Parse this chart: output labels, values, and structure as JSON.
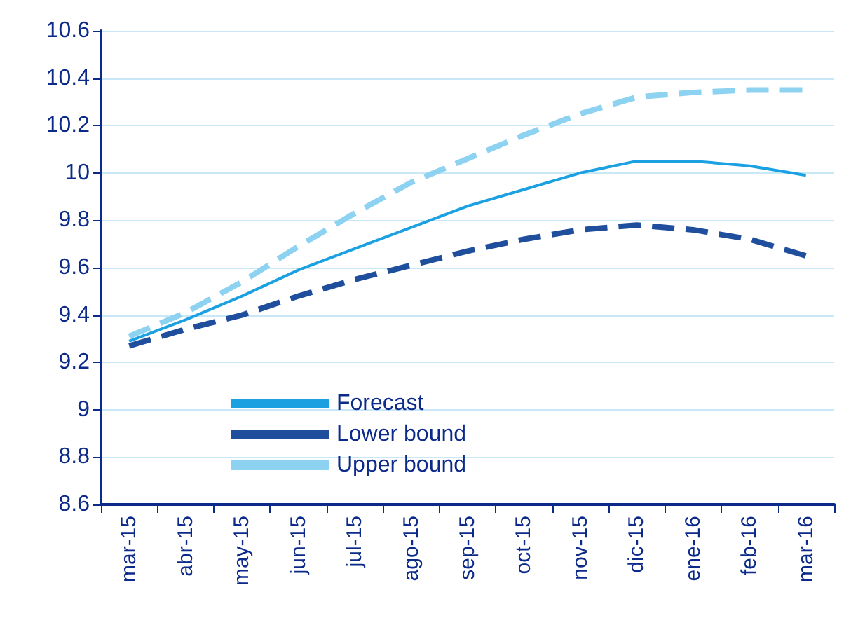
{
  "chart_data": {
    "type": "line",
    "categories": [
      "mar-15",
      "abr-15",
      "may-15",
      "jun-15",
      "jul-15",
      "ago-15",
      "sep-15",
      "oct-15",
      "nov-15",
      "dic-15",
      "ene-16",
      "feb-16",
      "mar-16"
    ],
    "series": [
      {
        "name": "Forecast",
        "color": "#1ba1e2",
        "line_style": "solid",
        "values": [
          9.29,
          9.38,
          9.48,
          9.59,
          9.68,
          9.77,
          9.86,
          9.93,
          10.0,
          10.05,
          10.05,
          10.03,
          9.99
        ]
      },
      {
        "name": "Lower bound",
        "color": "#1f4e9c",
        "line_style": "dashed",
        "values": [
          9.27,
          9.34,
          9.4,
          9.48,
          9.55,
          9.61,
          9.67,
          9.72,
          9.76,
          9.78,
          9.76,
          9.72,
          9.65
        ]
      },
      {
        "name": "Upper bound",
        "color": "#8ed2f2",
        "line_style": "dashed",
        "values": [
          9.31,
          9.41,
          9.54,
          9.69,
          9.83,
          9.96,
          10.06,
          10.16,
          10.25,
          10.32,
          10.34,
          10.35,
          10.35
        ]
      }
    ],
    "ylim": [
      8.6,
      10.6
    ],
    "yticks": [
      8.6,
      8.8,
      9,
      9.2,
      9.4,
      9.6,
      9.8,
      10,
      10.2,
      10.4,
      10.6
    ],
    "grid": "y",
    "legend": "bottom left",
    "marker": "none"
  }
}
